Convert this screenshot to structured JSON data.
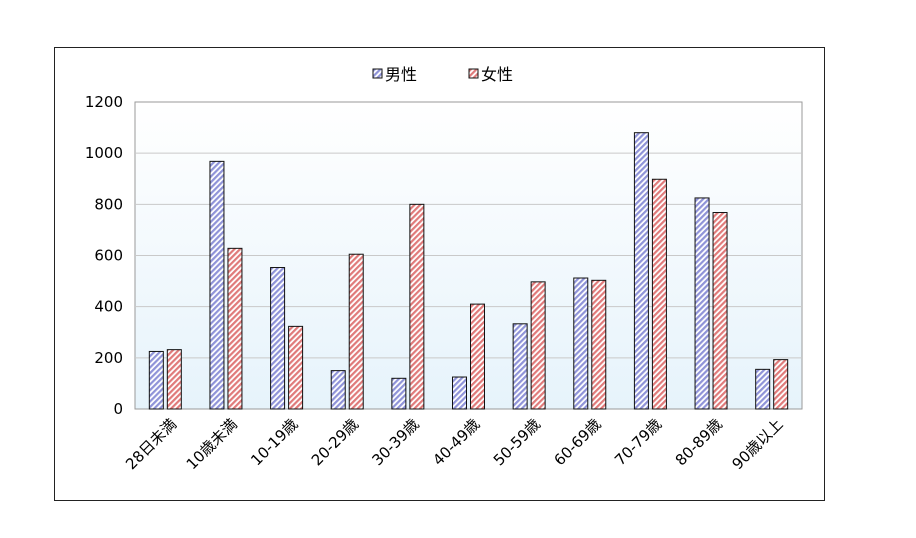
{
  "chart_data": {
    "type": "bar",
    "categories": [
      "28日未満",
      "10歳未満",
      "10-19歳",
      "20-29歳",
      "30-39歳",
      "40-49歳",
      "50-59歳",
      "60-69歳",
      "70-79歳",
      "80-89歳",
      "90歳以上"
    ],
    "series": [
      {
        "name": "男性",
        "color": "#8f93d8",
        "values": [
          225,
          968,
          553,
          150,
          120,
          125,
          333,
          512,
          1080,
          825,
          155
        ]
      },
      {
        "name": "女性",
        "color": "#e07a7a",
        "values": [
          232,
          628,
          323,
          605,
          800,
          410,
          497,
          503,
          898,
          768,
          193
        ]
      }
    ],
    "ylim": [
      0,
      1200
    ],
    "yticks": [
      0,
      200,
      400,
      600,
      800,
      1000,
      1200
    ],
    "grid": true,
    "legend": "top-center",
    "xlabel": "",
    "ylabel": "",
    "title": ""
  }
}
